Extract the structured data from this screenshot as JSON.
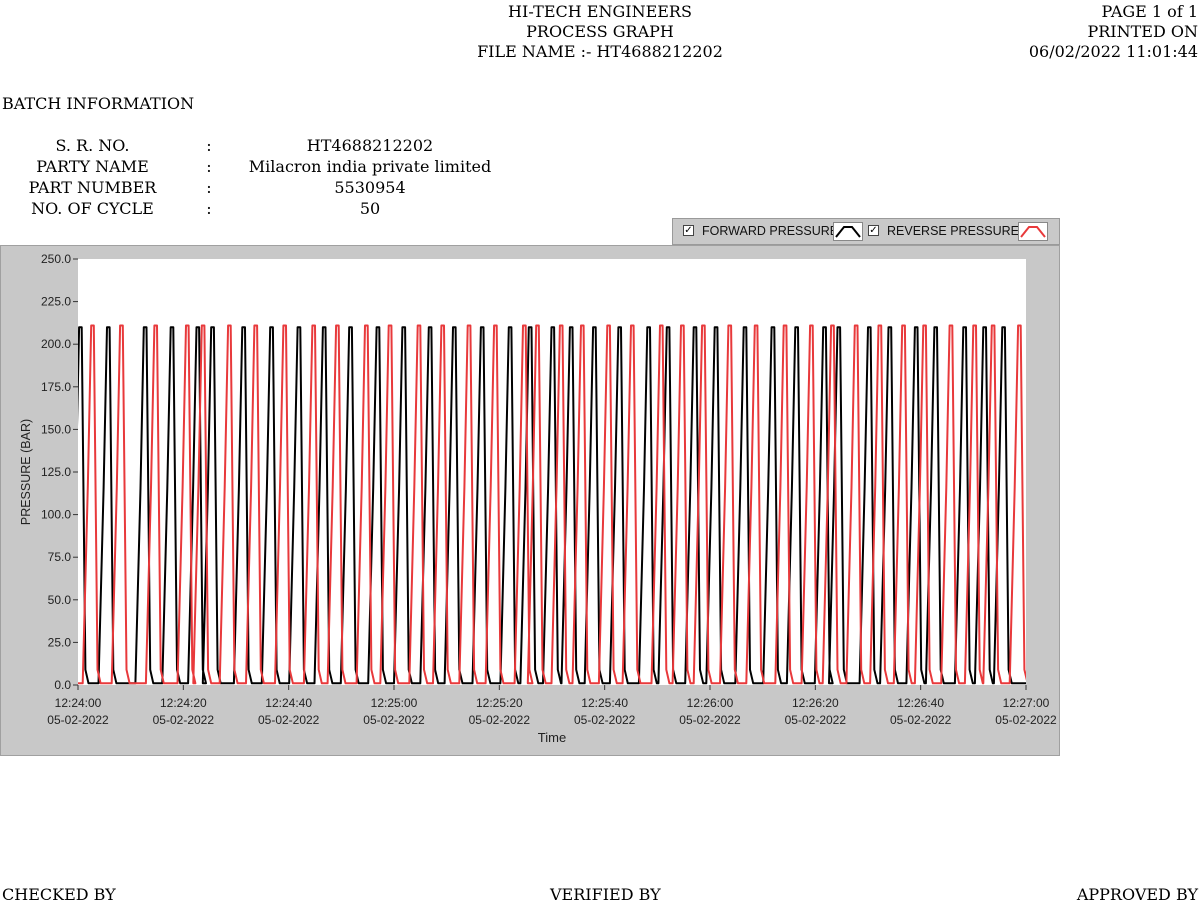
{
  "header": {
    "company": "HI-TECH ENGINEERS",
    "doc_title": "PROCESS GRAPH",
    "file_name": "FILE NAME :- HT4688212202",
    "page": "PAGE 1 of 1",
    "printed_label": "PRINTED ON",
    "printed_on": "06/02/2022 11:01:44"
  },
  "batch": {
    "title": "BATCH INFORMATION",
    "rows": [
      {
        "label": "S. R. NO.",
        "colon": ":",
        "value": "HT4688212202"
      },
      {
        "label": "PARTY NAME",
        "colon": ":",
        "value": "Milacron india private limited"
      },
      {
        "label": "PART NUMBER",
        "colon": ":",
        "value": "5530954"
      },
      {
        "label": "NO. OF CYCLE",
        "colon": ":",
        "value": "50"
      }
    ]
  },
  "legend": {
    "forward": "FORWARD PRESSURE",
    "reverse": "REVERSE PRESSURE",
    "forward_color": "#000000",
    "reverse_color": "#e8393b"
  },
  "footer": {
    "checked": "CHECKED BY",
    "verified": "VERIFIED BY",
    "approved": "APPROVED BY"
  },
  "chart_data": {
    "type": "line",
    "xlabel": "Time",
    "ylabel": "PRESSURE (BAR)",
    "ylim": [
      0,
      250
    ],
    "x_range_seconds": [
      0,
      180
    ],
    "y_ticks": [
      "0.0",
      "25.0",
      "50.0",
      "75.0",
      "100.0",
      "125.0",
      "150.0",
      "175.0",
      "200.0",
      "225.0",
      "250.0"
    ],
    "x_ticks": [
      {
        "time": "12:24:00",
        "date": "05-02-2022",
        "t": 0
      },
      {
        "time": "12:24:20",
        "date": "05-02-2022",
        "t": 20
      },
      {
        "time": "12:24:40",
        "date": "05-02-2022",
        "t": 40
      },
      {
        "time": "12:25:00",
        "date": "05-02-2022",
        "t": 60
      },
      {
        "time": "12:25:20",
        "date": "05-02-2022",
        "t": 80
      },
      {
        "time": "12:25:40",
        "date": "05-02-2022",
        "t": 100
      },
      {
        "time": "12:26:00",
        "date": "05-02-2022",
        "t": 120
      },
      {
        "time": "12:26:20",
        "date": "05-02-2022",
        "t": 140
      },
      {
        "time": "12:26:40",
        "date": "05-02-2022",
        "t": 160
      },
      {
        "time": "12:27:00",
        "date": "05-02-2022",
        "t": 180
      }
    ],
    "grid": false,
    "legend_position": "top-right",
    "series": [
      {
        "name": "FORWARD PRESSURE",
        "color": "#000000",
        "cycle_peak_times": [
          0.2,
          5.5,
          12.5,
          17.6,
          22.5,
          25.3,
          31.2,
          36.5,
          41.7,
          46.5,
          51.5,
          56.7,
          61.6,
          66.6,
          71.2,
          76.5,
          81.8,
          85.6,
          89.9,
          93.4,
          97.8,
          102.6,
          108.1,
          111.8,
          116.9,
          120.9,
          126.4,
          131.7,
          136.2,
          141.5,
          144.2,
          150.0,
          153.9,
          158.9,
          162.6,
          168.1,
          171.9,
          175.5
        ],
        "peak_value": 210,
        "baseline": 1
      },
      {
        "name": "REVERSE PRESSURE",
        "color": "#e8393b",
        "cycle_peak_times": [
          2.5,
          8.0,
          14.5,
          20.5,
          23.5,
          28.5,
          33.5,
          39.0,
          44.5,
          49.0,
          54.5,
          59.0,
          64.5,
          69.0,
          74.0,
          79.0,
          84.5,
          87.0,
          91.5,
          95.5,
          100.5,
          105.0,
          110.5,
          114.5,
          118.5,
          123.5,
          128.5,
          134.0,
          139.0,
          143.0,
          147.5,
          152.0,
          156.5,
          160.5,
          165.5,
          170.0,
          173.5,
          178.5
        ],
        "peak_value": 211,
        "baseline": 1
      }
    ]
  }
}
